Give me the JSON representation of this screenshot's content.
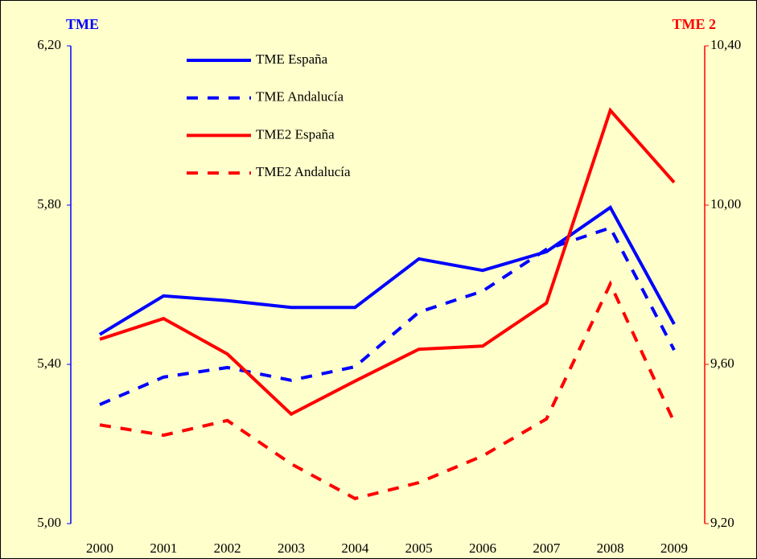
{
  "chart_data": {
    "type": "line",
    "y_label": "TME",
    "y2_label": "TME 2",
    "x": [
      "2000",
      "2001",
      "2002",
      "2003",
      "2004",
      "2005",
      "2006",
      "2007",
      "2008",
      "2009"
    ],
    "ylim": [
      5.0,
      6.2
    ],
    "yticks": [
      {
        "value": 5.0,
        "label": "5,00"
      },
      {
        "value": 5.4,
        "label": "5,40"
      },
      {
        "value": 5.8,
        "label": "5,80"
      },
      {
        "value": 6.2,
        "label": "6,20"
      }
    ],
    "y2lim": [
      9.2,
      10.4
    ],
    "y2ticks": [
      {
        "value": 9.2,
        "label": "9,20"
      },
      {
        "value": 9.6,
        "label": "9,60"
      },
      {
        "value": 10.0,
        "label": "10,00"
      },
      {
        "value": 10.4,
        "label": "10,40"
      }
    ],
    "series": [
      {
        "name": "TME España",
        "color": "#0000ff",
        "style": "solid",
        "values": [
          5.475,
          5.572,
          5.56,
          5.543,
          5.543,
          5.665,
          5.636,
          5.683,
          5.794,
          5.501
        ]
      },
      {
        "name": "TME Andalucía",
        "color": "#0000ff",
        "style": "dashed",
        "values": [
          5.299,
          5.368,
          5.392,
          5.36,
          5.394,
          5.531,
          5.584,
          5.689,
          5.743,
          5.436
        ]
      },
      {
        "name": "TME2 España",
        "color": "#ff0000",
        "style": "solid",
        "axis": "y2",
        "values": [
          9.663,
          9.715,
          9.626,
          9.475,
          9.558,
          9.638,
          9.646,
          9.754,
          10.238,
          10.057
        ]
      },
      {
        "name": "TME2 Andalucía",
        "color": "#ff0000",
        "style": "dashed",
        "axis": "y2",
        "values": [
          9.448,
          9.422,
          9.459,
          9.35,
          9.263,
          9.303,
          9.37,
          9.463,
          9.802,
          9.455
        ]
      }
    ],
    "legend": "upper-left"
  }
}
